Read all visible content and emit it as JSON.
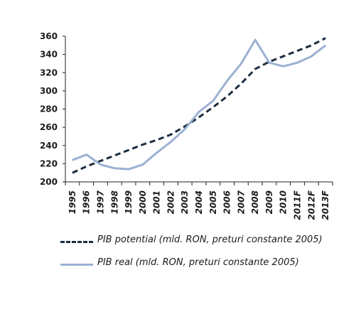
{
  "colors": {
    "potential": "#1c2c40",
    "real": "#9bb0d3",
    "axis": "#222222"
  },
  "chart_data": {
    "type": "line",
    "x": [
      "1995",
      "1996",
      "1997",
      "1998",
      "1999",
      "2000",
      "2001",
      "2002",
      "2003",
      "2004",
      "2005",
      "2006",
      "2007",
      "2008",
      "2009",
      "2010",
      "2011F",
      "2012F",
      "2013F"
    ],
    "ylim": [
      200,
      360
    ],
    "yticks": [
      200,
      220,
      240,
      260,
      280,
      300,
      320,
      340,
      360
    ],
    "grid": false,
    "legend_position": "bottom",
    "series": [
      {
        "name": "PIB potential (mld. RON, preturi constante 2005)",
        "style": "dashed",
        "values": [
          210,
          217,
          223,
          229,
          235,
          241,
          246,
          252,
          261,
          271,
          282,
          294,
          308,
          324,
          332,
          338,
          344,
          350,
          358
        ]
      },
      {
        "name": "PIB real (mld. RON, preturi constante 2005)",
        "style": "solid",
        "values": [
          224,
          230,
          219,
          215,
          214,
          219,
          232,
          244,
          258,
          277,
          289,
          311,
          330,
          356,
          331,
          327,
          331,
          338,
          350
        ]
      }
    ]
  }
}
